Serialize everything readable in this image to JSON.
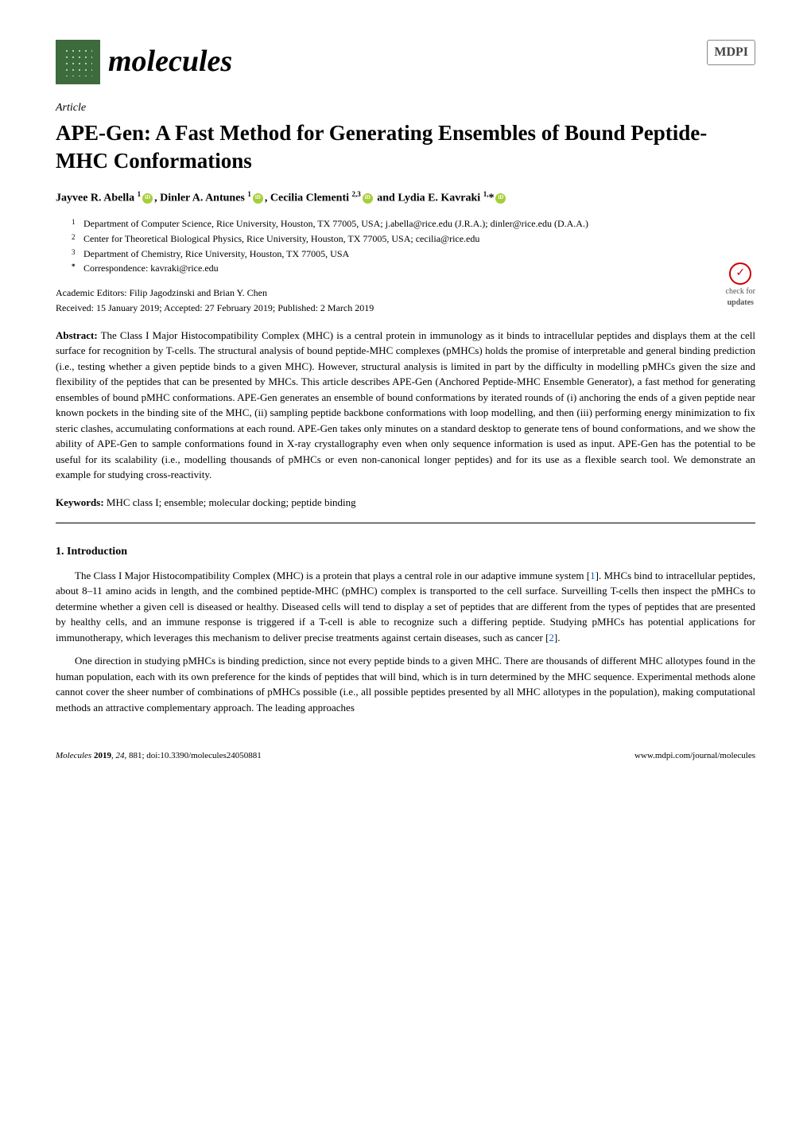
{
  "header": {
    "journal_name": "molecules",
    "publisher_logo": "MDPI"
  },
  "article": {
    "type": "Article",
    "title": "APE-Gen: A Fast Method for Generating Ensembles of Bound Peptide-MHC Conformations",
    "authors_html": "Jayvee R. Abella <span class='sup'>1</span><span class='orcid'></span>, Dinler A. Antunes <span class='sup'>1</span><span class='orcid'></span>, Cecilia Clementi <span class='sup'>2,3</span><span class='orcid'></span> and Lydia E. Kavraki <span class='sup'>1,</span>*<span class='orcid'></span>",
    "affiliations": [
      {
        "num": "1",
        "text": "Department of Computer Science, Rice University, Houston, TX 77005, USA; j.abella@rice.edu (J.R.A.); dinler@rice.edu (D.A.A.)"
      },
      {
        "num": "2",
        "text": "Center for Theoretical Biological Physics, Rice University, Houston, TX 77005, USA; cecilia@rice.edu"
      },
      {
        "num": "3",
        "text": "Department of Chemistry, Rice University, Houston, TX 77005, USA"
      },
      {
        "num": "*",
        "text": "Correspondence: kavraki@rice.edu"
      }
    ],
    "editors": "Academic Editors: Filip Jagodzinski and Brian Y. Chen",
    "dates": "Received: 15 January 2019; Accepted: 27 February 2019; Published: 2 March 2019",
    "check_updates_label": "check for updates",
    "abstract_label": "Abstract:",
    "abstract_text": "The Class I Major Histocompatibility Complex (MHC) is a central protein in immunology as it binds to intracellular peptides and displays them at the cell surface for recognition by T-cells. The structural analysis of bound peptide-MHC complexes (pMHCs) holds the promise of interpretable and general binding prediction (i.e., testing whether a given peptide binds to a given MHC). However, structural analysis is limited in part by the difficulty in modelling pMHCs given the size and flexibility of the peptides that can be presented by MHCs. This article describes APE-Gen (Anchored Peptide-MHC Ensemble Generator), a fast method for generating ensembles of bound pMHC conformations. APE-Gen generates an ensemble of bound conformations by iterated rounds of (i) anchoring the ends of a given peptide near known pockets in the binding site of the MHC, (ii) sampling peptide backbone conformations with loop modelling, and then (iii) performing energy minimization to fix steric clashes, accumulating conformations at each round. APE-Gen takes only minutes on a standard desktop to generate tens of bound conformations, and we show the ability of APE-Gen to sample conformations found in X-ray crystallography even when only sequence information is used as input. APE-Gen has the potential to be useful for its scalability (i.e., modelling thousands of pMHCs or even non-canonical longer peptides) and for its use as a flexible search tool. We demonstrate an example for studying cross-reactivity.",
    "keywords_label": "Keywords:",
    "keywords_text": "MHC class I; ensemble; molecular docking; peptide binding"
  },
  "sections": {
    "intro_heading": "1. Introduction",
    "intro_p1": "The Class I Major Histocompatibility Complex (MHC) is a protein that plays a central role in our adaptive immune system [1]. MHCs bind to intracellular peptides, about 8–11 amino acids in length, and the combined peptide-MHC (pMHC) complex is transported to the cell surface. Surveilling T-cells then inspect the pMHCs to determine whether a given cell is diseased or healthy. Diseased cells will tend to display a set of peptides that are different from the types of peptides that are presented by healthy cells, and an immune response is triggered if a T-cell is able to recognize such a differing peptide. Studying pMHCs has potential applications for immunotherapy, which leverages this mechanism to deliver precise treatments against certain diseases, such as cancer [2].",
    "intro_p2": "One direction in studying pMHCs is binding prediction, since not every peptide binds to a given MHC. There are thousands of different MHC allotypes found in the human population, each with its own preference for the kinds of peptides that will bind, which is in turn determined by the MHC sequence. Experimental methods alone cannot cover the sheer number of combinations of pMHCs possible (i.e., all possible peptides presented by all MHC allotypes in the population), making computational methods an attractive complementary approach. The leading approaches"
  },
  "footer": {
    "left": "Molecules 2019, 24, 881; doi:10.3390/molecules24050881",
    "left_journal": "Molecules",
    "left_rest": " 2019, 24, 881; doi:10.3390/molecules24050881",
    "right": "www.mdpi.com/journal/molecules"
  }
}
